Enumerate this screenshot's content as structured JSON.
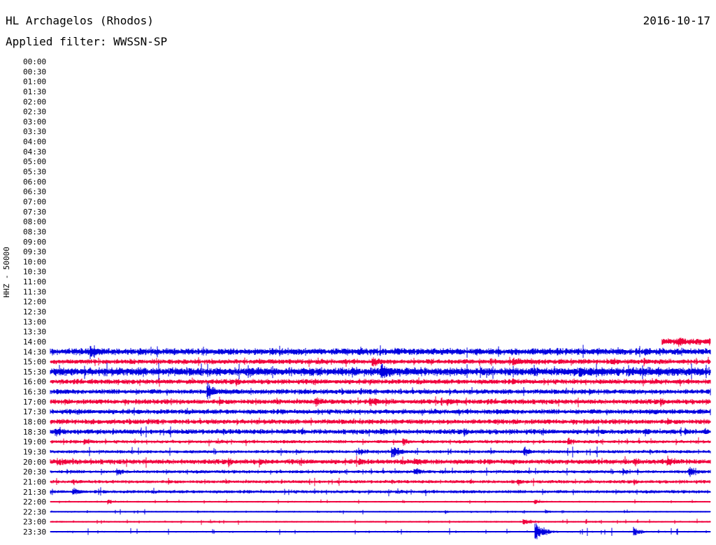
{
  "header": {
    "station": "HL Archagelos (Rhodos)",
    "date": "2016-10-17",
    "filter": "Applied filter: WWSSN-SP"
  },
  "axis": {
    "channel_scale": "HHZ - 50000"
  },
  "colors": {
    "trace_a": "#0000e0",
    "trace_b": "#f0003c"
  },
  "chart_data": {
    "type": "line",
    "title": "HL Archagelos (Rhodos)",
    "subtitle": "Applied filter: WWSSN-SP",
    "ylabel": "HHZ - 50000",
    "row_labels": [
      "00:00",
      "00:30",
      "01:00",
      "01:30",
      "02:00",
      "02:30",
      "03:00",
      "03:30",
      "04:00",
      "04:30",
      "05:00",
      "05:30",
      "06:00",
      "06:30",
      "07:00",
      "07:30",
      "08:00",
      "08:30",
      "09:00",
      "09:30",
      "10:00",
      "10:30",
      "11:00",
      "11:30",
      "12:00",
      "12:30",
      "13:00",
      "13:30",
      "14:00",
      "14:30",
      "15:00",
      "15:30",
      "16:00",
      "16:30",
      "17:00",
      "17:30",
      "18:00",
      "18:30",
      "19:00",
      "19:30",
      "20:00",
      "20:30",
      "21:00",
      "21:30",
      "22:00",
      "22:30",
      "23:00",
      "23:30"
    ],
    "x_unit": "minutes within row",
    "x_range": [
      0,
      30
    ],
    "data_start_row": "14:00",
    "data_start_minute": 27.8,
    "series_color_cycle": [
      "trace_a",
      "trace_b"
    ],
    "traces": [
      {
        "row": "14:00",
        "amp": 4,
        "burst": 2,
        "events": [
          [
            28.5,
            10,
            0.6
          ]
        ]
      },
      {
        "row": "14:30",
        "amp": 4,
        "burst": 6,
        "events": [
          [
            1.8,
            14,
            0.5
          ],
          [
            4.0,
            8,
            0.3
          ],
          [
            14.0,
            8,
            0.3
          ],
          [
            22.4,
            7,
            0.3
          ],
          [
            23.0,
            8,
            0.3
          ],
          [
            26.0,
            7,
            0.4
          ],
          [
            27.0,
            10,
            0.4
          ]
        ]
      },
      {
        "row": "15:00",
        "amp": 3,
        "burst": 5,
        "events": [
          [
            3.6,
            6,
            0.3
          ],
          [
            9.5,
            6,
            0.4
          ],
          [
            14.6,
            10,
            0.5
          ],
          [
            16.5,
            7,
            0.3
          ],
          [
            20.0,
            8,
            0.4
          ],
          [
            21.0,
            9,
            0.6
          ],
          [
            25.5,
            8,
            0.4
          ],
          [
            27.0,
            7,
            0.4
          ]
        ]
      },
      {
        "row": "15:30",
        "amp": 5,
        "burst": 9,
        "events": [
          [
            9.0,
            10,
            0.8
          ],
          [
            15.0,
            12,
            1.8
          ],
          [
            24.0,
            11,
            1.6
          ],
          [
            27.5,
            10,
            1.2
          ]
        ]
      },
      {
        "row": "16:00",
        "amp": 3,
        "burst": 4,
        "events": [
          [
            3.0,
            6,
            0.3
          ],
          [
            5.3,
            6,
            0.3
          ],
          [
            14.5,
            7,
            0.3
          ],
          [
            21.0,
            6,
            0.3
          ],
          [
            25.0,
            6,
            0.3
          ]
        ]
      },
      {
        "row": "16:30",
        "amp": 3,
        "burst": 4,
        "events": [
          [
            7.1,
            16,
            0.4
          ],
          [
            11.3,
            8,
            0.4
          ],
          [
            24.5,
            6,
            0.3
          ]
        ]
      },
      {
        "row": "17:00",
        "amp": 3,
        "burst": 5,
        "events": [
          [
            12.0,
            9,
            0.7
          ],
          [
            14.5,
            10,
            0.6
          ],
          [
            18.0,
            8,
            0.5
          ]
        ]
      },
      {
        "row": "17:30",
        "amp": 3,
        "burst": 3,
        "events": [
          [
            27.5,
            6,
            0.3
          ]
        ]
      },
      {
        "row": "18:00",
        "amp": 3,
        "burst": 3,
        "events": [
          [
            15.0,
            6,
            0.3
          ]
        ]
      },
      {
        "row": "18:30",
        "amp": 3,
        "burst": 5,
        "events": [
          [
            0.2,
            10,
            0.4
          ],
          [
            15.0,
            8,
            0.4
          ],
          [
            27.0,
            9,
            0.3
          ],
          [
            28.8,
            8,
            0.3
          ]
        ]
      },
      {
        "row": "19:00",
        "amp": 2,
        "burst": 5,
        "events": [
          [
            1.5,
            9,
            0.4
          ],
          [
            16.0,
            8,
            0.4
          ],
          [
            23.5,
            8,
            0.4
          ]
        ]
      },
      {
        "row": "19:30",
        "amp": 2,
        "burst": 6,
        "events": [
          [
            15.5,
            12,
            0.5
          ],
          [
            21.5,
            9,
            0.4
          ],
          [
            14.0,
            7,
            0.5
          ]
        ]
      },
      {
        "row": "20:00",
        "amp": 3,
        "burst": 6,
        "events": [
          [
            0.3,
            9,
            0.5
          ],
          [
            9.5,
            8,
            0.4
          ],
          [
            14.0,
            8,
            0.4
          ],
          [
            16.5,
            10,
            0.5
          ],
          [
            21.0,
            7,
            0.4
          ],
          [
            26.5,
            9,
            0.4
          ],
          [
            28.0,
            10,
            0.5
          ]
        ]
      },
      {
        "row": "20:30",
        "amp": 2,
        "burst": 5,
        "events": [
          [
            3.0,
            7,
            0.5
          ],
          [
            16.5,
            9,
            0.4
          ],
          [
            26.0,
            8,
            0.3
          ],
          [
            29.0,
            9,
            0.6
          ]
        ]
      },
      {
        "row": "21:00",
        "amp": 2,
        "burst": 4,
        "events": [
          [
            1.0,
            6,
            0.5
          ],
          [
            21.2,
            8,
            0.3
          ]
        ]
      },
      {
        "row": "21:30",
        "amp": 2,
        "burst": 5,
        "events": [
          [
            1.0,
            9,
            0.4
          ]
        ]
      },
      {
        "row": "22:00",
        "amp": 1,
        "burst": 3,
        "events": [
          [
            2.6,
            5,
            0.3
          ],
          [
            22.0,
            7,
            0.3
          ]
        ]
      },
      {
        "row": "22:30",
        "amp": 1,
        "burst": 3,
        "events": [
          [
            22.5,
            5,
            0.3
          ]
        ]
      },
      {
        "row": "23:00",
        "amp": 1,
        "burst": 4,
        "events": [
          [
            21.5,
            8,
            0.4
          ]
        ]
      },
      {
        "row": "23:30",
        "amp": 1,
        "burst": 5,
        "events": [
          [
            22.0,
            16,
            0.5
          ],
          [
            26.5,
            9,
            0.4
          ]
        ]
      }
    ]
  }
}
